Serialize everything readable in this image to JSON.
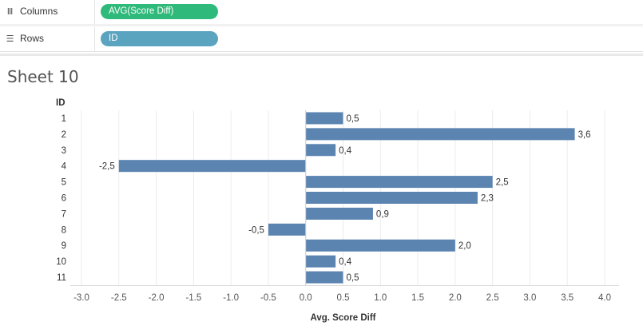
{
  "shelves": {
    "columns": {
      "label": "Columns",
      "icon": "columns-icon",
      "pill": "AVG(Score Diff)",
      "pill_color": "#2fb97a"
    },
    "rows": {
      "label": "Rows",
      "icon": "rows-icon",
      "pill": "ID",
      "pill_color": "#5aa4c0"
    }
  },
  "sheet_title": "Sheet 10",
  "chart_data": {
    "type": "bar",
    "orientation": "horizontal",
    "categories": [
      "1",
      "2",
      "3",
      "4",
      "5",
      "6",
      "7",
      "8",
      "9",
      "10",
      "11"
    ],
    "values": [
      0.5,
      3.6,
      0.4,
      -2.5,
      2.5,
      2.3,
      0.9,
      -0.5,
      2.0,
      0.4,
      0.5
    ],
    "value_labels": [
      "0,5",
      "3,6",
      "0,4",
      "-2,5",
      "2,5",
      "2,3",
      "0,9",
      "-0,5",
      "2,0",
      "0,4",
      "0,5"
    ],
    "category_header": "ID",
    "xlabel": "Avg. Score Diff",
    "xlim": [
      -3.0,
      4.0
    ],
    "xticks": [
      "-3.0",
      "-2.5",
      "-2.0",
      "-1.5",
      "-1.0",
      "-0.5",
      "0.0",
      "0.5",
      "1.0",
      "1.5",
      "2.0",
      "2.5",
      "3.0",
      "3.5",
      "4.0"
    ],
    "bar_color": "#5b84b1",
    "grid": true
  }
}
